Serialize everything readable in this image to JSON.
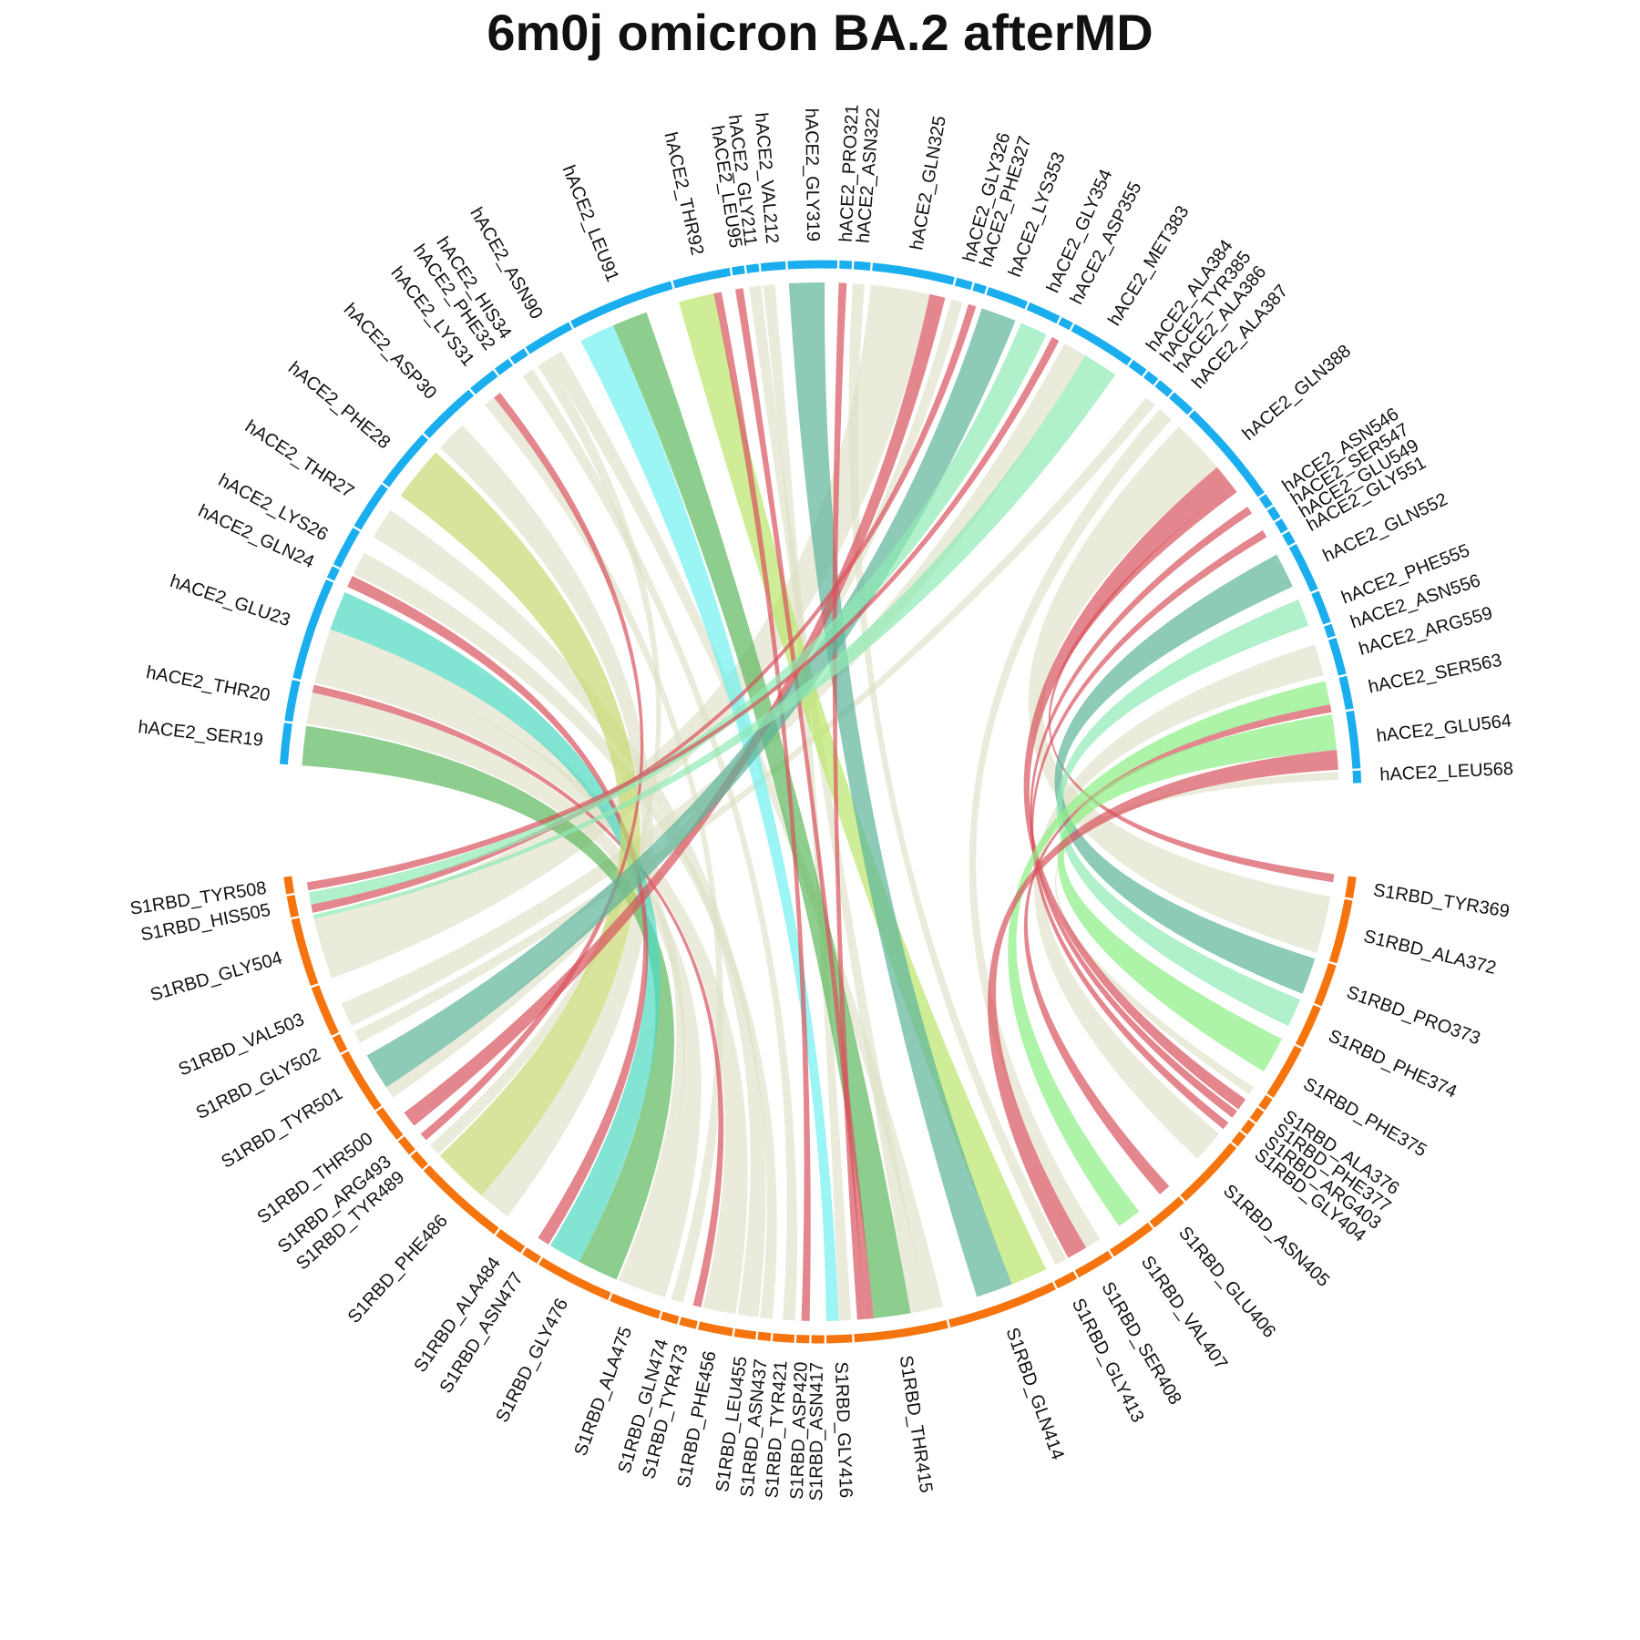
{
  "colors": {
    "hace2_arc": "#1aaeef",
    "s1rbd_arc": "#f5740e",
    "link_default": "#dfe0c8",
    "link_red": "#d9535d",
    "link_teal": "#5db49a",
    "link_green": "#5cb85c",
    "link_cyan": "#6ff1ef",
    "link_lime": "#b9e56a",
    "link_olive": "#c8d870",
    "link_mint": "#8fe9b4",
    "link_aqua": "#4dd9c0",
    "link_light_green": "#8cef83"
  },
  "chart_data": {
    "type": "chord",
    "title": "6m0j omicron BA.2 afterMD",
    "groups": [
      {
        "name": "hACE2",
        "color": "#1aaeef"
      },
      {
        "name": "S1RBD",
        "color": "#f5740e"
      }
    ],
    "hace2_residues": [
      {
        "label": "hACE2_SER19",
        "size": 1.0
      },
      {
        "label": "hACE2_THR20",
        "size": 1.0
      },
      {
        "label": "hACE2_GLU23",
        "size": 2.5
      },
      {
        "label": "hACE2_GLN24",
        "size": 0.3
      },
      {
        "label": "hACE2_LYS26",
        "size": 1.0
      },
      {
        "label": "hACE2_THR27",
        "size": 1.2
      },
      {
        "label": "hACE2_PHE28",
        "size": 1.5
      },
      {
        "label": "hACE2_ASP30",
        "size": 1.5
      },
      {
        "label": "hACE2_LYS31",
        "size": 0.7
      },
      {
        "label": "hACE2_PHE32",
        "size": 0.4
      },
      {
        "label": "hACE2_HIS34",
        "size": 0.4
      },
      {
        "label": "hACE2_ASN90",
        "size": 1.2
      },
      {
        "label": "hACE2_LEU91",
        "size": 2.6
      },
      {
        "label": "hACE2_THR92",
        "size": 1.4
      },
      {
        "label": "hACE2_LEU95",
        "size": 0.3
      },
      {
        "label": "hACE2_GLY211",
        "size": 0.3
      },
      {
        "label": "hACE2_VAL212",
        "size": 0.6
      },
      {
        "label": "hACE2_GLY319",
        "size": 1.2
      },
      {
        "label": "hACE2_PRO321",
        "size": 0.3
      },
      {
        "label": "hACE2_ASN322",
        "size": 0.4
      },
      {
        "label": "hACE2_GLN325",
        "size": 2.0
      },
      {
        "label": "hACE2_GLY326",
        "size": 0.4
      },
      {
        "label": "hACE2_PHE327",
        "size": 0.3
      },
      {
        "label": "hACE2_LYS353",
        "size": 1.0
      },
      {
        "label": "hACE2_GLY354",
        "size": 0.8
      },
      {
        "label": "hACE2_ASP355",
        "size": 0.3
      },
      {
        "label": "hACE2_MET383",
        "size": 1.6
      },
      {
        "label": "hACE2_ALA384",
        "size": 0.4
      },
      {
        "label": "hACE2_TYR385",
        "size": 0.3
      },
      {
        "label": "hACE2_ALA386",
        "size": 0.4
      },
      {
        "label": "hACE2_ALA387",
        "size": 0.6
      },
      {
        "label": "hACE2_GLN388",
        "size": 2.6
      },
      {
        "label": "hACE2_ASN546",
        "size": 0.3
      },
      {
        "label": "hACE2_SER547",
        "size": 0.3
      },
      {
        "label": "hACE2_GLU549",
        "size": 0.3
      },
      {
        "label": "hACE2_GLY551",
        "size": 0.3
      },
      {
        "label": "hACE2_GLN552",
        "size": 1.2
      },
      {
        "label": "hACE2_PHE555",
        "size": 0.8
      },
      {
        "label": "hACE2_ASN556",
        "size": 0.3
      },
      {
        "label": "hACE2_ARG559",
        "size": 0.9
      },
      {
        "label": "hACE2_SER563",
        "size": 0.8
      },
      {
        "label": "hACE2_GLU564",
        "size": 1.4
      },
      {
        "label": "hACE2_LEU568",
        "size": 0.3
      }
    ],
    "s1rbd_residues": [
      {
        "label": "S1RBD_TYR369",
        "size": 0.5
      },
      {
        "label": "S1RBD_ALA372",
        "size": 1.5
      },
      {
        "label": "S1RBD_PRO373",
        "size": 1.0
      },
      {
        "label": "S1RBD_PHE374",
        "size": 1.0
      },
      {
        "label": "S1RBD_PHE375",
        "size": 1.3
      },
      {
        "label": "S1RBD_ALA376",
        "size": 0.3
      },
      {
        "label": "S1RBD_PHE377",
        "size": 0.3
      },
      {
        "label": "S1RBD_ARG403",
        "size": 0.3
      },
      {
        "label": "S1RBD_GLY404",
        "size": 0.3
      },
      {
        "label": "S1RBD_ASN405",
        "size": 1.7
      },
      {
        "label": "S1RBD_GLU406",
        "size": 0.9
      },
      {
        "label": "S1RBD_VAL407",
        "size": 1.1
      },
      {
        "label": "S1RBD_SER408",
        "size": 0.9
      },
      {
        "label": "S1RBD_GLY413",
        "size": 0.5
      },
      {
        "label": "S1RBD_GLN414",
        "size": 2.6
      },
      {
        "label": "S1RBD_THR415",
        "size": 2.2
      },
      {
        "label": "S1RBD_GLY416",
        "size": 0.6
      },
      {
        "label": "S1RBD_ASN417",
        "size": 0.3
      },
      {
        "label": "S1RBD_ASP420",
        "size": 0.3
      },
      {
        "label": "S1RBD_TYR421",
        "size": 0.5
      },
      {
        "label": "S1RBD_ASN437",
        "size": 0.3
      },
      {
        "label": "S1RBD_LEU455",
        "size": 0.5
      },
      {
        "label": "S1RBD_PHE456",
        "size": 0.8
      },
      {
        "label": "S1RBD_TYR473",
        "size": 0.4
      },
      {
        "label": "S1RBD_GLN474",
        "size": 0.4
      },
      {
        "label": "S1RBD_ALA475",
        "size": 1.2
      },
      {
        "label": "S1RBD_GLY476",
        "size": 1.8
      },
      {
        "label": "S1RBD_ASN477",
        "size": 0.4
      },
      {
        "label": "S1RBD_ALA484",
        "size": 0.7
      },
      {
        "label": "S1RBD_PHE486",
        "size": 2.2
      },
      {
        "label": "S1RBD_TYR489",
        "size": 0.4
      },
      {
        "label": "S1RBD_ARG493",
        "size": 0.4
      },
      {
        "label": "S1RBD_THR500",
        "size": 0.8
      },
      {
        "label": "S1RBD_TYR501",
        "size": 1.5
      },
      {
        "label": "S1RBD_GLY502",
        "size": 0.4
      },
      {
        "label": "S1RBD_VAL503",
        "size": 1.2
      },
      {
        "label": "S1RBD_GLY504",
        "size": 1.6
      },
      {
        "label": "S1RBD_HIS505",
        "size": 0.5
      },
      {
        "label": "S1RBD_TYR508",
        "size": 0.4
      }
    ],
    "links": [
      {
        "from": "hACE2_SER19",
        "to": "S1RBD_GLY476",
        "width": 1.0,
        "color": "green"
      },
      {
        "from": "hACE2_THR20",
        "to": "S1RBD_ALA475",
        "width": 0.8,
        "color": "default"
      },
      {
        "from": "hACE2_THR20",
        "to": "S1RBD_TYR473",
        "width": 0.2,
        "color": "red"
      },
      {
        "from": "hACE2_GLU23",
        "to": "S1RBD_GLY476",
        "width": 1.0,
        "color": "aqua"
      },
      {
        "from": "hACE2_GLU23",
        "to": "S1RBD_PHE456",
        "width": 0.8,
        "color": "default"
      },
      {
        "from": "hACE2_GLU23",
        "to": "S1RBD_ALA475",
        "width": 0.6,
        "color": "default"
      },
      {
        "from": "hACE2_GLN24",
        "to": "S1RBD_ASN477",
        "width": 0.3,
        "color": "red"
      },
      {
        "from": "hACE2_LYS26",
        "to": "S1RBD_ASN437",
        "width": 0.6,
        "color": "default"
      },
      {
        "from": "hACE2_THR27",
        "to": "S1RBD_LEU455",
        "width": 0.8,
        "color": "default"
      },
      {
        "from": "hACE2_PHE28",
        "to": "S1RBD_PHE486",
        "width": 1.4,
        "color": "olive"
      },
      {
        "from": "hACE2_ASP30",
        "to": "S1RBD_PHE486",
        "width": 0.8,
        "color": "default"
      },
      {
        "from": "hACE2_LYS31",
        "to": "S1RBD_ARG493",
        "width": 0.2,
        "color": "red"
      },
      {
        "from": "hACE2_LYS31",
        "to": "S1RBD_GLN474",
        "width": 0.3,
        "color": "default"
      },
      {
        "from": "hACE2_HIS34",
        "to": "S1RBD_TYR421",
        "width": 0.3,
        "color": "default"
      },
      {
        "from": "hACE2_ASN90",
        "to": "S1RBD_TYR489",
        "width": 0.3,
        "color": "default"
      },
      {
        "from": "hACE2_ASN90",
        "to": "S1RBD_THR415",
        "width": 0.4,
        "color": "default"
      },
      {
        "from": "hACE2_LEU91",
        "to": "S1RBD_GLY416",
        "width": 0.9,
        "color": "cyan"
      },
      {
        "from": "hACE2_LEU91",
        "to": "S1RBD_THR415",
        "width": 0.9,
        "color": "green"
      },
      {
        "from": "hACE2_THR92",
        "to": "S1RBD_GLN414",
        "width": 0.9,
        "color": "lime"
      },
      {
        "from": "hACE2_THR92",
        "to": "S1RBD_ASP420",
        "width": 0.2,
        "color": "red"
      },
      {
        "from": "hACE2_LEU95",
        "to": "S1RBD_THR415",
        "width": 0.2,
        "color": "red"
      },
      {
        "from": "hACE2_GLY211",
        "to": "S1RBD_THR415",
        "width": 0.4,
        "color": "default"
      },
      {
        "from": "hACE2_VAL212",
        "to": "S1RBD_GLY416",
        "width": 0.3,
        "color": "default"
      },
      {
        "from": "hACE2_GLY319",
        "to": "S1RBD_GLN414",
        "width": 0.9,
        "color": "teal"
      },
      {
        "from": "hACE2_PRO321",
        "to": "S1RBD_THR415",
        "width": 0.2,
        "color": "red"
      },
      {
        "from": "hACE2_ASN322",
        "to": "S1RBD_GLY413",
        "width": 0.3,
        "color": "default"
      },
      {
        "from": "hACE2_GLN325",
        "to": "S1RBD_GLY504",
        "width": 1.5,
        "color": "default"
      },
      {
        "from": "hACE2_GLN325",
        "to": "S1RBD_THR500",
        "width": 0.4,
        "color": "red"
      },
      {
        "from": "hACE2_GLY326",
        "to": "S1RBD_TYR501",
        "width": 0.3,
        "color": "default"
      },
      {
        "from": "hACE2_PHE327",
        "to": "S1RBD_HIS505",
        "width": 0.2,
        "color": "red"
      },
      {
        "from": "hACE2_LYS353",
        "to": "S1RBD_TYR501",
        "width": 0.9,
        "color": "teal"
      },
      {
        "from": "hACE2_GLY354",
        "to": "S1RBD_HIS505",
        "width": 0.7,
        "color": "mint"
      },
      {
        "from": "hACE2_ASP355",
        "to": "S1RBD_TYR508",
        "width": 0.2,
        "color": "red"
      },
      {
        "from": "hACE2_MET383",
        "to": "S1RBD_GLY504",
        "width": 0.9,
        "color": "mint"
      },
      {
        "from": "hACE2_MET383",
        "to": "S1RBD_VAL503",
        "width": 0.6,
        "color": "default"
      },
      {
        "from": "hACE2_ALA386",
        "to": "S1RBD_GLY502",
        "width": 0.3,
        "color": "default"
      },
      {
        "from": "hACE2_ALA387",
        "to": "S1RBD_SER408",
        "width": 0.4,
        "color": "default"
      },
      {
        "from": "hACE2_GLN388",
        "to": "S1RBD_PHE377",
        "width": 0.6,
        "color": "red"
      },
      {
        "from": "hACE2_GLN388",
        "to": "S1RBD_ALA372",
        "width": 1.4,
        "color": "default"
      },
      {
        "from": "hACE2_GLN388",
        "to": "S1RBD_TYR369",
        "width": 0.2,
        "color": "red"
      },
      {
        "from": "hACE2_ASN546",
        "to": "S1RBD_ARG403",
        "width": 0.2,
        "color": "red"
      },
      {
        "from": "hACE2_GLU549",
        "to": "S1RBD_GLY404",
        "width": 0.2,
        "color": "red"
      },
      {
        "from": "hACE2_GLN552",
        "to": "S1RBD_PRO373",
        "width": 0.9,
        "color": "teal"
      },
      {
        "from": "hACE2_PHE555",
        "to": "S1RBD_PHE374",
        "width": 0.7,
        "color": "mint"
      },
      {
        "from": "hACE2_ARG559",
        "to": "S1RBD_ASN405",
        "width": 0.8,
        "color": "default"
      },
      {
        "from": "hACE2_SER563",
        "to": "S1RBD_VAL407",
        "width": 0.6,
        "color": "light_green"
      },
      {
        "from": "hACE2_SER563",
        "to": "S1RBD_GLU406",
        "width": 0.3,
        "color": "red"
      },
      {
        "from": "hACE2_GLU564",
        "to": "S1RBD_PHE375",
        "width": 0.9,
        "color": "light_green"
      },
      {
        "from": "hACE2_GLU564",
        "to": "S1RBD_SER408",
        "width": 0.5,
        "color": "red"
      },
      {
        "from": "hACE2_LEU568",
        "to": "S1RBD_ALA376",
        "width": 0.2,
        "color": "default"
      }
    ]
  }
}
